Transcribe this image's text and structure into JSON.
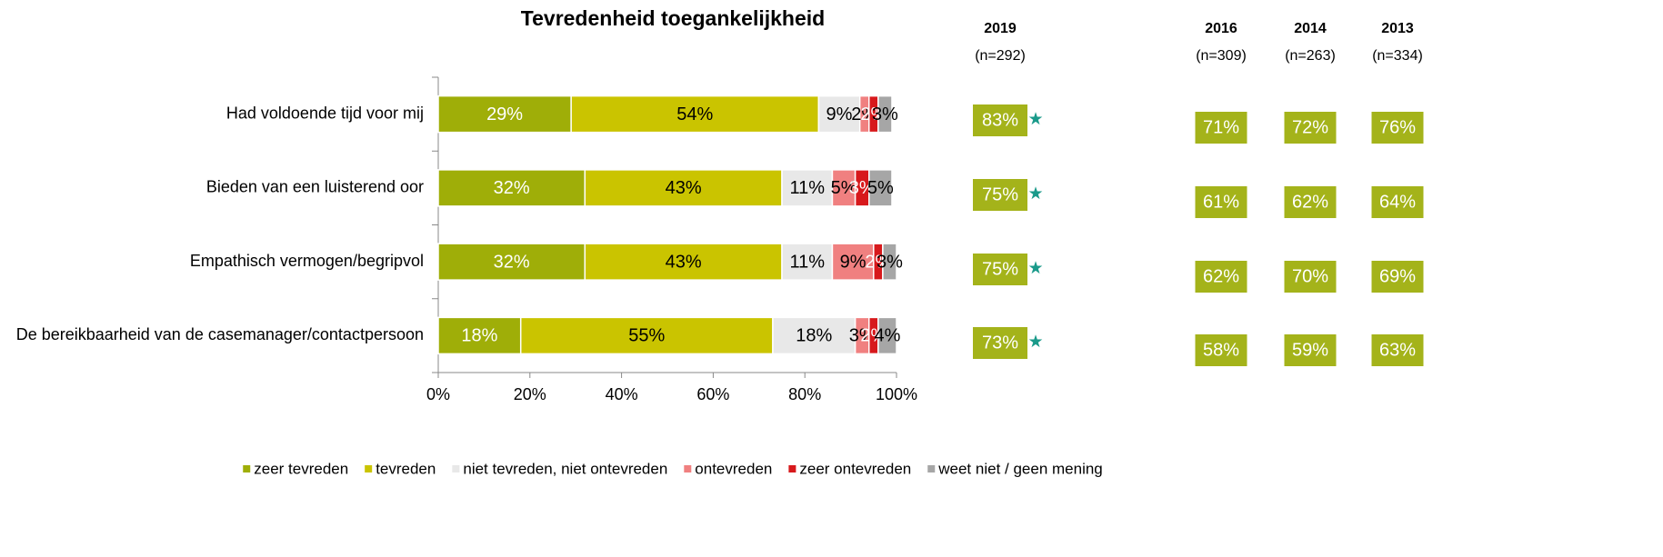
{
  "chart_data": {
    "type": "stacked_bar_horizontal",
    "title": "Tevredenheid toegankelijkheid",
    "categories": [
      "Had voldoende tijd voor mij",
      "Bieden van een luisterend oor",
      "Empathisch vermogen/begripvol",
      "De bereikbaarheid van de casemanager/contactpersoon"
    ],
    "series": [
      {
        "name": "zeer tevreden",
        "color": "#9fae08",
        "values": [
          29,
          32,
          32,
          18
        ],
        "value_labels": [
          "29%",
          "32%",
          "32%",
          "18%"
        ]
      },
      {
        "name": "tevreden",
        "color": "#cac400",
        "values": [
          54,
          43,
          43,
          55
        ],
        "value_labels": [
          "54%",
          "43%",
          "43%",
          "55%"
        ]
      },
      {
        "name": "niet tevreden, niet ontevreden",
        "color": "#e8e8e8",
        "values": [
          9,
          11,
          11,
          18
        ],
        "value_labels": [
          "9%",
          "11%",
          "11%",
          "18%"
        ]
      },
      {
        "name": "ontevreden",
        "color": "#f08080",
        "values": [
          2,
          5,
          9,
          3
        ],
        "value_labels": [
          "2%",
          "5%",
          "9%",
          "3%"
        ]
      },
      {
        "name": "zeer ontevreden",
        "color": "#d7191c",
        "values": [
          2,
          3,
          2,
          2
        ],
        "value_labels": [
          "2%",
          "3%",
          "2%",
          "2%"
        ]
      },
      {
        "name": "weet niet / geen mening",
        "color": "#a6a6a6",
        "values": [
          3,
          5,
          3,
          4
        ],
        "value_labels": [
          "3%",
          "5%",
          "3%",
          "4%"
        ]
      }
    ],
    "xlim": [
      0,
      100
    ],
    "xticks": [
      {
        "value": 0,
        "label": "0%"
      },
      {
        "value": 20,
        "label": "20%"
      },
      {
        "value": 40,
        "label": "40%"
      },
      {
        "value": 60,
        "label": "60%"
      },
      {
        "value": 80,
        "label": "80%"
      },
      {
        "value": 100,
        "label": "100%"
      }
    ],
    "legend": "bottom",
    "comparison": {
      "marker": "★",
      "marker_color": "#1a9a8a",
      "box_color": "#a4b31a",
      "columns": [
        {
          "year": "2019",
          "n": "(n=292)",
          "values": [
            83,
            75,
            75,
            73
          ],
          "value_labels": [
            "83%",
            "75%",
            "75%",
            "73%"
          ]
        },
        {
          "year": "2016",
          "n": "(n=309)",
          "values": [
            71,
            61,
            62,
            58
          ],
          "value_labels": [
            "71%",
            "61%",
            "62%",
            "58%"
          ]
        },
        {
          "year": "2014",
          "n": "(n=263)",
          "values": [
            72,
            62,
            70,
            59
          ],
          "value_labels": [
            "72%",
            "62%",
            "70%",
            "59%"
          ]
        },
        {
          "year": "2013",
          "n": "(n=334)",
          "values": [
            76,
            64,
            69,
            63
          ],
          "value_labels": [
            "76%",
            "64%",
            "69%",
            "63%"
          ]
        }
      ]
    }
  }
}
